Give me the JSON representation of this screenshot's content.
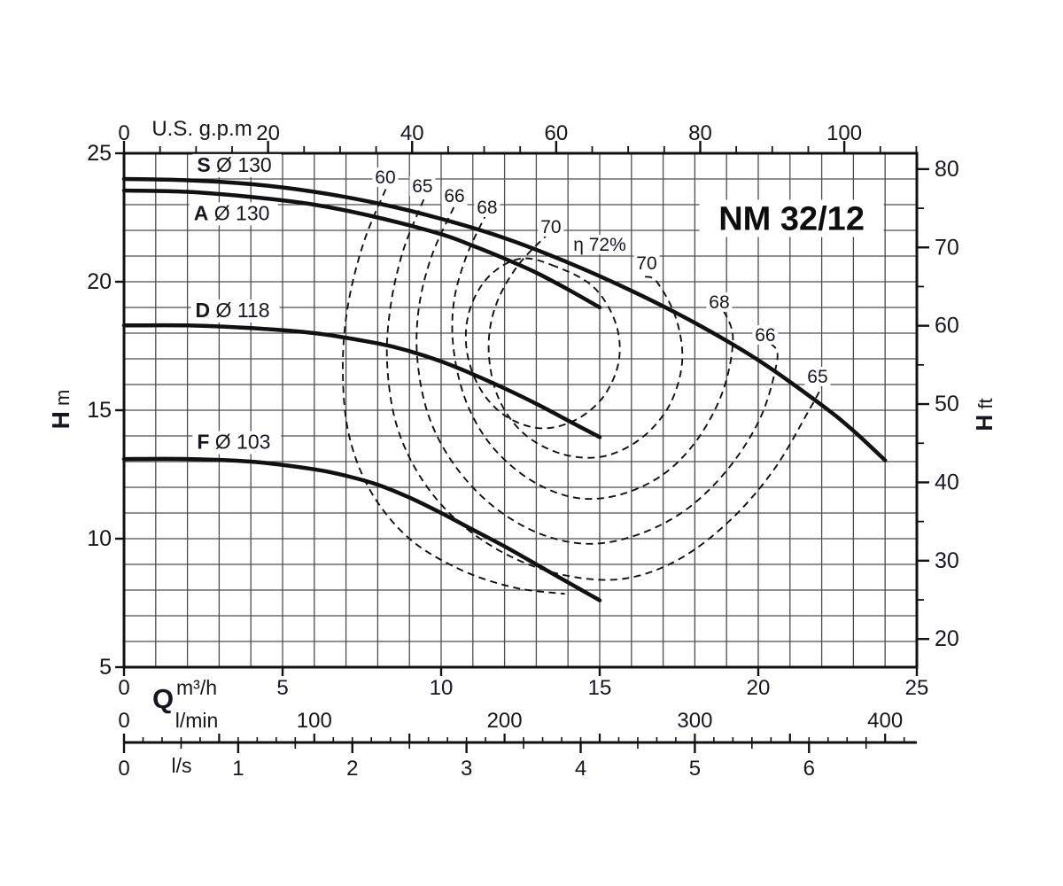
{
  "colors": {
    "background": "#ffffff",
    "ink": "#111111",
    "grid": "#4e4e4e",
    "text": "#16161f"
  },
  "chart_data": {
    "type": "line",
    "title": "NM 32/12",
    "title_anchor_qh": [
      21.05,
      22.5
    ],
    "axes": {
      "top": {
        "unit": "U.S. g.p.m",
        "major_ticks": [
          0,
          20,
          40,
          60,
          80,
          100
        ],
        "minor_step": 5,
        "max_value": 110,
        "units_per_m3h": 4.40287
      },
      "left": {
        "unit_bold": "H",
        "unit": "m",
        "major_ticks": [
          25,
          20,
          15,
          10,
          5
        ],
        "min": 5,
        "max": 25,
        "grid_step": 1
      },
      "right": {
        "unit_bold": "H",
        "unit": "ft",
        "major_ticks": [
          80,
          70,
          60,
          50,
          40,
          30,
          20
        ],
        "minor_step": 5,
        "ft_per_m": 3.28084
      },
      "bottom_m3h": {
        "label": "Q",
        "unit": "m³/h",
        "major_ticks": [
          0,
          5,
          10,
          15,
          20,
          25
        ],
        "min": 0,
        "max": 25,
        "grid_step": 1
      },
      "bottom_lmin": {
        "unit": "l/min",
        "labeled_ticks": [
          0,
          100,
          200,
          300,
          400
        ],
        "minor_step": 10,
        "medium_step": 50,
        "m3h_per_unit": 0.06
      },
      "bottom_ls": {
        "unit": "l/s",
        "labeled_ticks": [
          0,
          1,
          2,
          3,
          4,
          5,
          6
        ],
        "minor_step": 0.5,
        "m3h_per_unit": 3.6
      }
    },
    "curves": [
      {
        "id": "S",
        "label_bold": "S",
        "label_rest": " Ø 130",
        "label_anchor_qh": [
          2.3,
          24.28
        ],
        "points": [
          [
            0,
            24.0
          ],
          [
            2,
            23.95
          ],
          [
            4,
            23.8
          ],
          [
            6,
            23.5
          ],
          [
            8,
            23.05
          ],
          [
            10,
            22.45
          ],
          [
            12,
            21.7
          ],
          [
            14,
            20.75
          ],
          [
            16,
            19.65
          ],
          [
            18,
            18.4
          ],
          [
            20,
            16.95
          ],
          [
            22,
            15.2
          ],
          [
            23,
            14.2
          ],
          [
            24,
            13.05
          ]
        ]
      },
      {
        "id": "A",
        "label_bold": "A",
        "label_rest": " Ø 130",
        "label_anchor_qh": [
          2.2,
          22.4
        ],
        "points": [
          [
            0,
            23.55
          ],
          [
            2,
            23.5
          ],
          [
            4,
            23.3
          ],
          [
            6,
            23.0
          ],
          [
            8,
            22.5
          ],
          [
            10,
            21.85
          ],
          [
            11,
            21.4
          ],
          [
            12,
            20.9
          ],
          [
            13,
            20.35
          ],
          [
            14,
            19.7
          ],
          [
            15,
            19.0
          ]
        ]
      },
      {
        "id": "D",
        "label_bold": "D",
        "label_rest": " Ø 118",
        "label_anchor_qh": [
          2.25,
          18.62
        ],
        "points": [
          [
            0,
            18.3
          ],
          [
            2,
            18.3
          ],
          [
            4,
            18.2
          ],
          [
            6,
            18.0
          ],
          [
            8,
            17.6
          ],
          [
            9,
            17.3
          ],
          [
            10,
            16.9
          ],
          [
            11,
            16.4
          ],
          [
            12,
            15.85
          ],
          [
            13,
            15.25
          ],
          [
            14,
            14.6
          ],
          [
            15,
            13.95
          ]
        ]
      },
      {
        "id": "F",
        "label_bold": "F",
        "label_rest": " Ø 103",
        "label_anchor_qh": [
          2.3,
          13.5
        ],
        "points": [
          [
            0,
            13.1
          ],
          [
            2,
            13.1
          ],
          [
            4,
            13.0
          ],
          [
            6,
            12.7
          ],
          [
            7,
            12.45
          ],
          [
            8,
            12.1
          ],
          [
            9,
            11.6
          ],
          [
            10,
            11.0
          ],
          [
            11,
            10.35
          ],
          [
            12,
            9.7
          ],
          [
            13,
            9.0
          ],
          [
            14,
            8.3
          ],
          [
            15,
            7.6
          ]
        ]
      }
    ],
    "efficiency_contours": [
      {
        "value": 60,
        "closed": false,
        "points": [
          [
            8.25,
            23.6
          ],
          [
            7.55,
            21.5
          ],
          [
            7.05,
            19.0
          ],
          [
            6.9,
            16.5
          ],
          [
            7.1,
            14.0
          ],
          [
            7.8,
            11.8
          ],
          [
            9.0,
            10.0
          ],
          [
            10.6,
            8.8
          ],
          [
            12.3,
            8.1
          ],
          [
            13.9,
            7.85
          ]
        ]
      },
      {
        "value": 65,
        "closed": false,
        "points": [
          [
            9.45,
            23.2
          ],
          [
            8.8,
            21.2
          ],
          [
            8.4,
            19.0
          ],
          [
            8.3,
            16.8
          ],
          [
            8.6,
            14.4
          ],
          [
            9.4,
            12.3
          ],
          [
            10.6,
            10.6
          ],
          [
            12.2,
            9.3
          ],
          [
            14.0,
            8.55
          ],
          [
            15.8,
            8.45
          ],
          [
            17.5,
            9.2
          ],
          [
            19.1,
            10.7
          ],
          [
            20.5,
            12.7
          ],
          [
            21.6,
            15.0
          ],
          [
            22.0,
            15.9
          ]
        ]
      },
      {
        "value": 66,
        "closed": false,
        "points": [
          [
            10.4,
            22.9
          ],
          [
            9.7,
            21.0
          ],
          [
            9.3,
            19.0
          ],
          [
            9.25,
            17.0
          ],
          [
            9.6,
            14.8
          ],
          [
            10.4,
            12.9
          ],
          [
            11.6,
            11.3
          ],
          [
            13.1,
            10.2
          ],
          [
            14.7,
            9.8
          ],
          [
            16.3,
            10.2
          ],
          [
            17.8,
            11.2
          ],
          [
            19.1,
            12.8
          ],
          [
            20.1,
            14.8
          ],
          [
            20.6,
            17.0
          ],
          [
            20.4,
            17.6
          ]
        ]
      },
      {
        "value": 68,
        "closed": false,
        "points": [
          [
            11.45,
            22.7
          ],
          [
            10.8,
            21.0
          ],
          [
            10.4,
            19.2
          ],
          [
            10.4,
            17.3
          ],
          [
            10.8,
            15.3
          ],
          [
            11.6,
            13.6
          ],
          [
            12.8,
            12.3
          ],
          [
            14.2,
            11.6
          ],
          [
            15.6,
            11.7
          ],
          [
            17.0,
            12.5
          ],
          [
            18.1,
            13.9
          ],
          [
            18.9,
            15.8
          ],
          [
            19.2,
            17.8
          ],
          [
            18.9,
            18.9
          ]
        ]
      },
      {
        "value": 70,
        "closed": false,
        "points": [
          [
            13.4,
            21.9
          ],
          [
            12.4,
            20.6
          ],
          [
            11.7,
            19.0
          ],
          [
            11.5,
            17.3
          ],
          [
            11.8,
            15.5
          ],
          [
            12.6,
            14.1
          ],
          [
            13.8,
            13.3
          ],
          [
            15.1,
            13.2
          ],
          [
            16.3,
            13.9
          ],
          [
            17.2,
            15.2
          ],
          [
            17.6,
            16.9
          ],
          [
            17.4,
            18.6
          ],
          [
            16.8,
            20.0
          ],
          [
            16.4,
            20.2
          ]
        ]
      },
      {
        "value": 72,
        "closed": true,
        "points": [
          [
            13.6,
            20.6
          ],
          [
            12.5,
            20.9
          ],
          [
            11.5,
            20.2
          ],
          [
            10.9,
            18.9
          ],
          [
            10.8,
            17.4
          ],
          [
            11.2,
            15.9
          ],
          [
            12.0,
            14.8
          ],
          [
            13.1,
            14.3
          ],
          [
            14.2,
            14.6
          ],
          [
            15.1,
            15.5
          ],
          [
            15.6,
            16.9
          ],
          [
            15.5,
            18.4
          ],
          [
            14.8,
            19.8
          ]
        ]
      }
    ],
    "efficiency_labels": [
      {
        "text": "60",
        "qh": [
          8.24,
          24.07
        ]
      },
      {
        "text": "65",
        "qh": [
          9.41,
          23.72
        ]
      },
      {
        "text": "66",
        "qh": [
          10.42,
          23.34
        ]
      },
      {
        "text": "68",
        "qh": [
          11.45,
          22.9
        ]
      },
      {
        "text": "70",
        "qh": [
          13.46,
          22.14
        ]
      },
      {
        "text": "η 72%",
        "qh": [
          15.0,
          21.45
        ]
      },
      {
        "text": "70",
        "qh": [
          16.48,
          20.72
        ]
      },
      {
        "text": "68",
        "qh": [
          18.77,
          19.21
        ]
      },
      {
        "text": "66",
        "qh": [
          20.22,
          17.93
        ]
      },
      {
        "text": "65",
        "qh": [
          21.87,
          16.31
        ]
      }
    ]
  }
}
